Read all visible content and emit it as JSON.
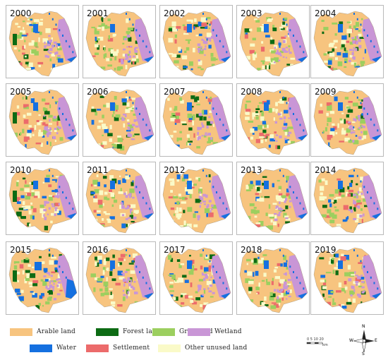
{
  "panels": [
    {
      "year": "2000"
    },
    {
      "year": "2001"
    },
    {
      "year": "2002"
    },
    {
      "year": "2003"
    },
    {
      "year": "2004"
    },
    {
      "year": "2005"
    },
    {
      "year": "2006"
    },
    {
      "year": "2007"
    },
    {
      "year": "2008"
    },
    {
      "year": "2009"
    },
    {
      "year": "2010"
    },
    {
      "year": "2011"
    },
    {
      "year": "2012"
    },
    {
      "year": "2013"
    },
    {
      "year": "2014"
    },
    {
      "year": "2015"
    },
    {
      "year": "2016"
    },
    {
      "year": "2017"
    },
    {
      "year": "2018"
    },
    {
      "year": "2019"
    }
  ],
  "legend": [
    {
      "label": "Arable land",
      "color": "#f7c47f"
    },
    {
      "label": "Forest land",
      "color": "#0d6b14"
    },
    {
      "label": "Grassland",
      "color": "#9ccf5f"
    },
    {
      "label": "Wetland",
      "color": "#c996d6"
    },
    {
      "label": "Water",
      "color": "#1570e0"
    },
    {
      "label": "Settlement",
      "color": "#ec6b6b"
    },
    {
      "label": "Other unused land",
      "color": "#fafac8"
    }
  ],
  "scale": {
    "labels": "0 5 10 20",
    "unit": "km"
  },
  "compass": {
    "n": "N",
    "s": "S",
    "e": "E",
    "w": "W"
  }
}
